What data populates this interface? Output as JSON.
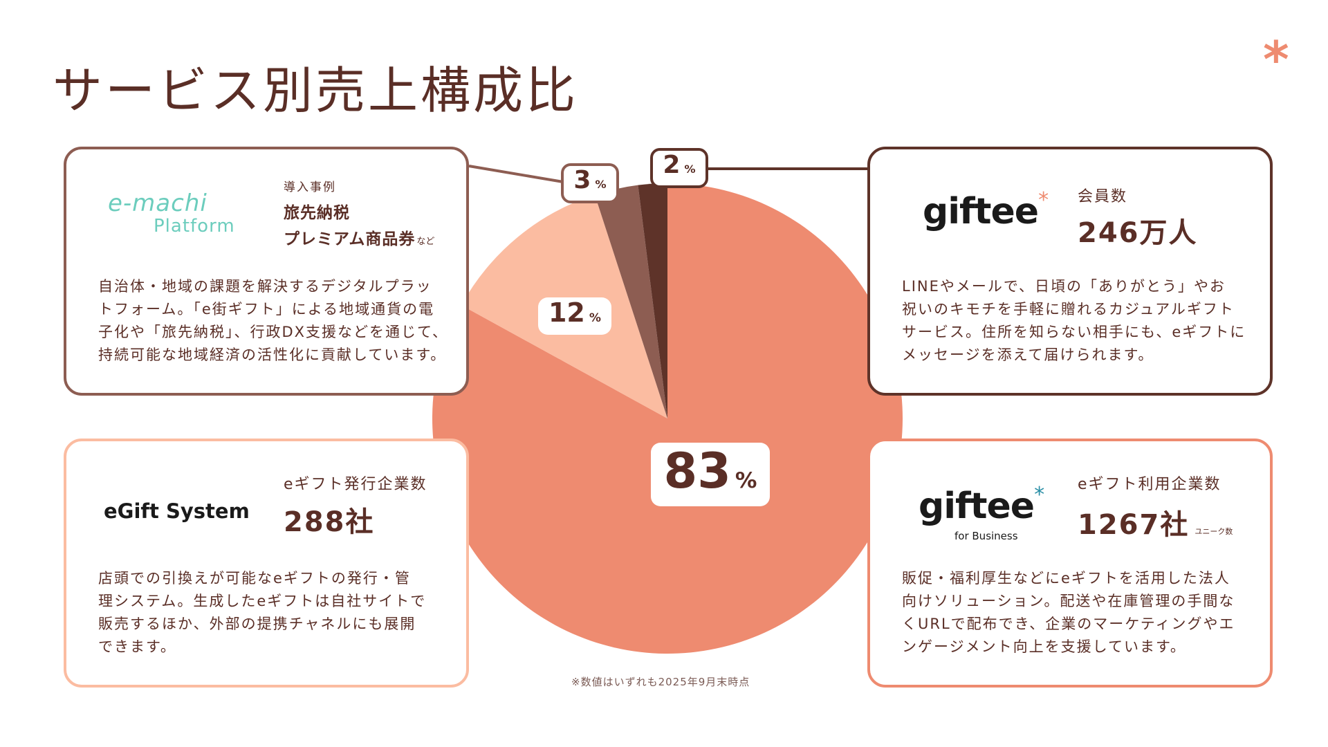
{
  "title": "サービス別売上構成比",
  "accent_mark": "*",
  "colors": {
    "coral": "#ee8b70",
    "peach": "#fbbca1",
    "mocha": "#8d5d52",
    "espresso": "#5e3329",
    "text": "#5a2e26"
  },
  "chart_data": {
    "type": "pie",
    "title": "サービス別売上構成比",
    "slices": [
      {
        "label": "giftee for Business",
        "value": 83
      },
      {
        "label": "eGift System",
        "value": 12
      },
      {
        "label": "e-machi Platform",
        "value": 3
      },
      {
        "label": "giftee",
        "value": 2
      }
    ],
    "unit": "%",
    "start": "top, counter-clockwise from the 2% slice"
  },
  "labels": {
    "pct83": "83",
    "pct12": "12",
    "pct3": "3",
    "pct2": "2",
    "pct_unit": "%"
  },
  "cards": {
    "emachi": {
      "logo_top": "e-machi",
      "logo_bottom": "Platform",
      "tag": "導入事例",
      "line1": "旅先納税",
      "line2": "プレミアム商品券",
      "line2_suffix": "など",
      "desc": [
        "自治体・地域の課題を解決するデジタルプラッ",
        "トフォーム。「e街ギフト」による地域通貨の電",
        "子化や「旅先納税」、行政DX支援などを通じて、",
        "持続可能な地域経済の活性化に貢献しています。"
      ]
    },
    "giftee": {
      "logo": "giftee",
      "logo_star": "*",
      "stat_label": "会員数",
      "stat_value": "246万人",
      "desc": [
        "LINEやメールで、日頃の「ありがとう」やお",
        "祝いのキモチを手軽に贈れるカジュアルギフト",
        "サービス。住所を知らない相手にも、eギフトに",
        "メッセージを添えて届けられます。"
      ]
    },
    "egift": {
      "logo": "eGift System",
      "stat_label": "eギフト発行企業数",
      "stat_value": "288社",
      "desc": [
        "店頭での引換えが可能なeギフトの発行・管",
        "理システム。生成したeギフトは自社サイトで",
        "販売するほか、外部の提携チャネルにも展開",
        "できます。"
      ]
    },
    "business": {
      "logo": "giftee",
      "logo_star": "*",
      "logo_sub": "for Business",
      "stat_label": "eギフト利用企業数",
      "stat_value": "1267社",
      "stat_suffix": "ユニーク数",
      "desc": [
        "販促・福利厚生などにeギフトを活用した法人",
        "向けソリューション。配送や在庫管理の手間な",
        "くURLで配布でき、企業のマーケティングやエ",
        "ンゲージメント向上を支援しています。"
      ]
    }
  },
  "footnote": "※数値はいずれも2025年9月末時点"
}
